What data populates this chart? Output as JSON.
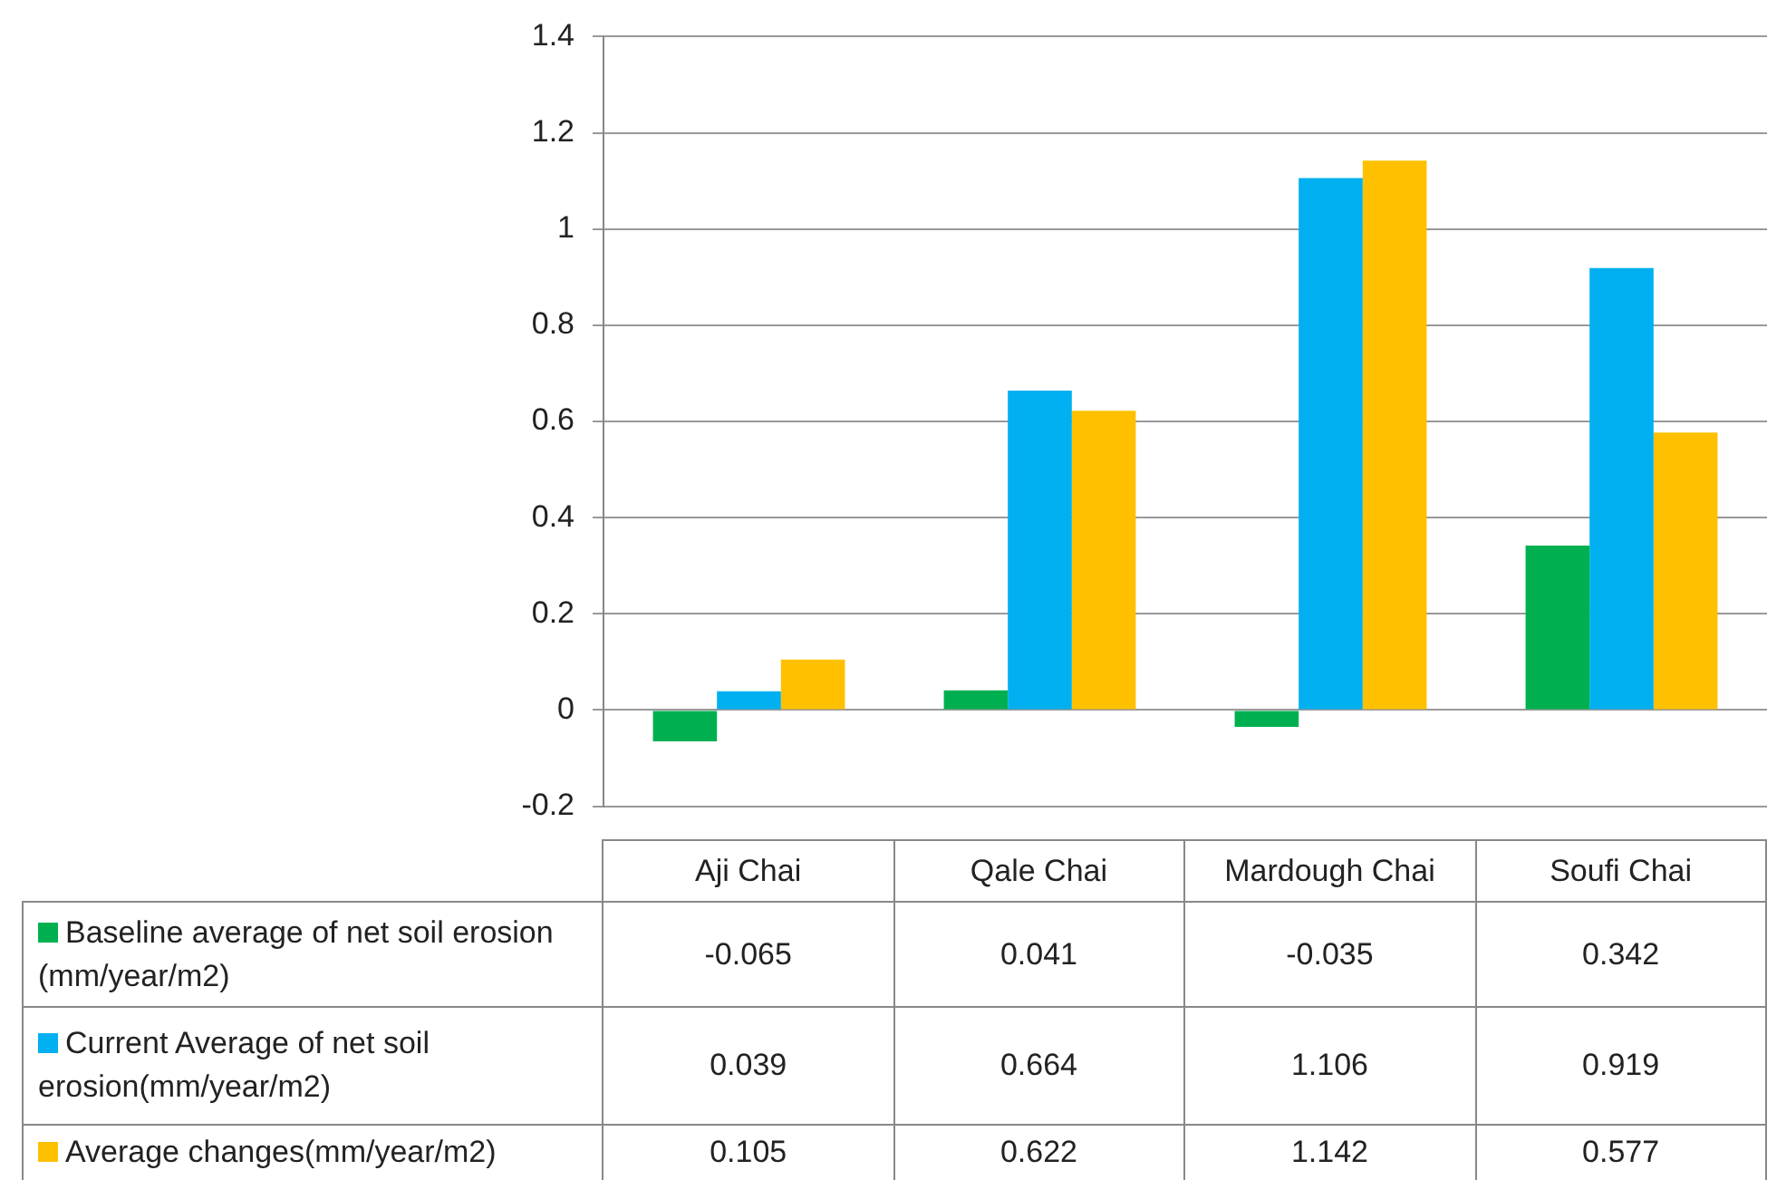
{
  "chart_data": {
    "type": "bar",
    "categories": [
      "Aji Chai",
      "Qale Chai",
      "Mardough Chai",
      "Soufi Chai"
    ],
    "series": [
      {
        "name": "Baseline average of net soil erosion (mm/year/m2)",
        "color": "#00b050",
        "values": [
          -0.065,
          0.041,
          -0.035,
          0.342
        ]
      },
      {
        "name": "Current Average of net soil erosion(mm/year/m2)",
        "color": "#00b0f0",
        "values": [
          0.039,
          0.664,
          1.106,
          0.919
        ]
      },
      {
        "name": "Average changes(mm/year/m2)",
        "color": "#ffc000",
        "values": [
          0.105,
          0.622,
          1.142,
          0.577
        ]
      }
    ],
    "ylim": [
      -0.2,
      1.4
    ],
    "yticks": [
      -0.2,
      0,
      0.2,
      0.4,
      0.6,
      0.8,
      1,
      1.2,
      1.4
    ],
    "grid": "y",
    "legend": "bottom",
    "data_labels": true
  }
}
